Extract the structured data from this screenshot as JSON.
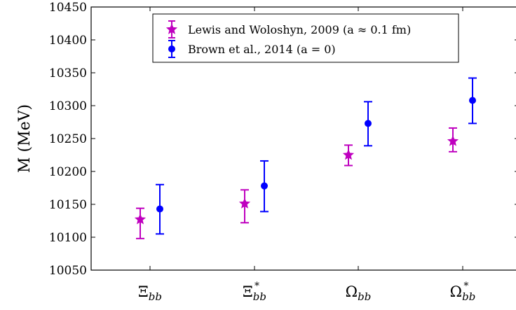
{
  "chart_data": {
    "type": "scatter",
    "title": "",
    "xlabel": "",
    "ylabel": "M (MeV)",
    "ylim": [
      10050,
      10450
    ],
    "yticks": [
      10050,
      10100,
      10150,
      10200,
      10250,
      10300,
      10350,
      10400,
      10450
    ],
    "categories": [
      "Ξbb",
      "Ξ*bb",
      "Ωbb",
      "Ω*bb"
    ],
    "grid": false,
    "legend_position": "top-center",
    "series": [
      {
        "name": "Lewis and Woloshyn, 2009 (a ≈ 0.1 fm)",
        "marker": "star",
        "color": "#bf00bf",
        "values": [
          10127,
          10151,
          10225,
          10246
        ],
        "error_upper": [
          17,
          21,
          15,
          20
        ],
        "error_lower": [
          29,
          29,
          16,
          16
        ]
      },
      {
        "name": "Brown et al., 2014 (a = 0)",
        "marker": "circle",
        "color": "#0000ff",
        "values": [
          10143,
          10178,
          10273,
          10308
        ],
        "error_upper": [
          37,
          38,
          33,
          34
        ],
        "error_lower": [
          38,
          39,
          34,
          35
        ]
      }
    ]
  }
}
